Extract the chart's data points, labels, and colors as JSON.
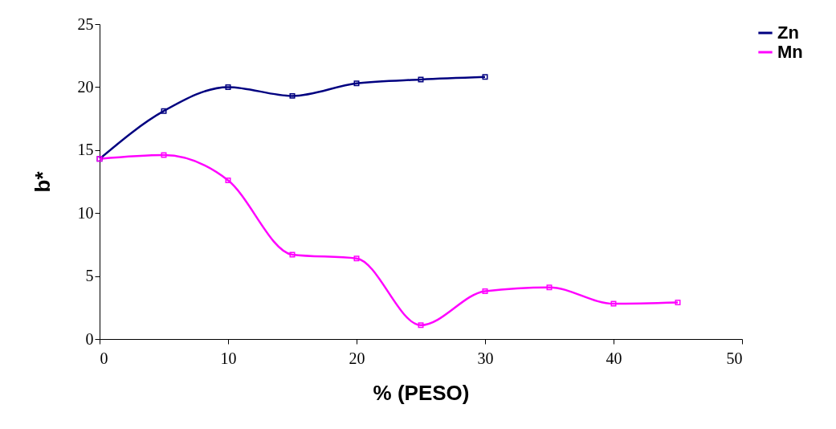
{
  "chart_data": {
    "type": "line",
    "xlabel": "% (PESO)",
    "ylabel": "b*",
    "x": [
      0,
      5,
      10,
      15,
      20,
      25,
      30,
      35,
      40,
      45
    ],
    "series": [
      {
        "name": "Zn",
        "color": "#000080",
        "x": [
          0,
          5,
          10,
          15,
          20,
          25,
          30
        ],
        "values": [
          14.3,
          18.1,
          20.0,
          19.3,
          20.3,
          20.6,
          20.8
        ]
      },
      {
        "name": "Mn",
        "color": "#ff00ff",
        "values": [
          14.3,
          14.6,
          12.6,
          6.7,
          6.4,
          1.1,
          3.8,
          4.1,
          2.8,
          2.9
        ]
      }
    ],
    "xlim": [
      0,
      50
    ],
    "xticks": [
      0,
      10,
      20,
      30,
      40,
      50
    ],
    "ylim": [
      0,
      25
    ],
    "yticks": [
      0,
      5,
      10,
      15,
      20,
      25
    ],
    "grid": false,
    "legend": "right",
    "marker": "square",
    "line_style": "solid"
  }
}
